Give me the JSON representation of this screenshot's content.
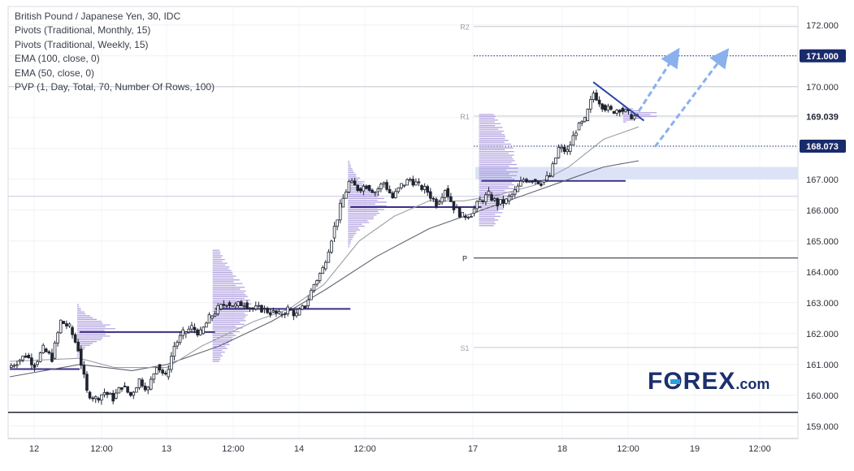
{
  "legend": [
    "British Pound / Japanese Yen, 30, IDC",
    "Pivots (Traditional, Monthly, 15)",
    "Pivots (Traditional, Weekly, 15)",
    "EMA (100, close, 0)",
    "EMA (50, close, 0)",
    "PVP (1, Day, Total, 70, Number Of Rows, 100)"
  ],
  "logo": {
    "prefix": "F",
    "o": "O",
    "suffix": "REX",
    "tld": ".com"
  },
  "colors": {
    "candle": "#1f2430",
    "ema50": "#9a9ea6",
    "ema100": "#5f6470",
    "volume_profile": "#9b86d6",
    "poc": "#3b2f86",
    "trendline": "#2a46a6",
    "arrow": "#8ab0ee",
    "level_label_bg": "#1a2b6b",
    "zone": "#dde3f7"
  },
  "chart_data": {
    "type": "candlestick",
    "ylim": [
      158.6,
      172.6
    ],
    "y_ticks": [
      "172.000",
      "171.000",
      "170.000",
      "169.000",
      "168.000",
      "167.000",
      "166.000",
      "165.000",
      "164.000",
      "163.000",
      "162.000",
      "161.000",
      "160.000",
      "159.000"
    ],
    "x_ticks": [
      "12",
      "12:00",
      "13",
      "12:00",
      "14",
      "12:00",
      "17",
      "18",
      "12:00",
      "19",
      "12:00"
    ],
    "grid": true,
    "pivot_labels": [
      "R2",
      "R1",
      "P",
      "S1"
    ],
    "pivots": {
      "R2": 171.95,
      "R1": 169.05,
      "P": 164.45,
      "S1": 161.55
    },
    "horizontal_levels": [
      {
        "label": "171.000",
        "value": 171.0,
        "style": "dotted",
        "tagged": true
      },
      {
        "label": "168.073",
        "value": 168.073,
        "style": "dotted",
        "tagged": true
      },
      {
        "value": 170.0,
        "style": "solid"
      },
      {
        "value": 159.45,
        "style": "solid-dark"
      }
    ],
    "last_price": "169.039",
    "last_price_value": 169.039,
    "price_path": [
      [
        0,
        160.9
      ],
      [
        1,
        161.1
      ],
      [
        2,
        161.3
      ],
      [
        3,
        161.0
      ],
      [
        4,
        161.5
      ],
      [
        5,
        161.2
      ],
      [
        6,
        162.4
      ],
      [
        7,
        162.2
      ],
      [
        8,
        161.5
      ],
      [
        9,
        160.1
      ],
      [
        10,
        159.9
      ],
      [
        11,
        160.1
      ],
      [
        12,
        159.9
      ],
      [
        13,
        160.3
      ],
      [
        14,
        160.0
      ],
      [
        15,
        160.5
      ],
      [
        16,
        160.2
      ],
      [
        17,
        161.0
      ],
      [
        18,
        160.6
      ],
      [
        19,
        161.6
      ],
      [
        20,
        162.0
      ],
      [
        21,
        162.2
      ],
      [
        22,
        162.0
      ],
      [
        23,
        162.5
      ],
      [
        24,
        162.8
      ],
      [
        25,
        163.0
      ],
      [
        26,
        162.9
      ],
      [
        27,
        163.0
      ],
      [
        28,
        162.8
      ],
      [
        29,
        162.8
      ],
      [
        30,
        162.7
      ],
      [
        31,
        162.6
      ],
      [
        32,
        162.8
      ],
      [
        33,
        162.6
      ],
      [
        34,
        162.9
      ],
      [
        35,
        163.6
      ],
      [
        36,
        164.1
      ],
      [
        37,
        165.1
      ],
      [
        38,
        166.1
      ],
      [
        39,
        166.9
      ],
      [
        40,
        166.7
      ],
      [
        41,
        166.8
      ],
      [
        42,
        166.6
      ],
      [
        43,
        166.9
      ],
      [
        44,
        166.4
      ],
      [
        45,
        166.8
      ],
      [
        46,
        167.0
      ],
      [
        47,
        166.8
      ],
      [
        48,
        166.6
      ],
      [
        49,
        166.2
      ],
      [
        50,
        166.7
      ],
      [
        51,
        166.1
      ],
      [
        52,
        165.8
      ],
      [
        53,
        165.9
      ],
      [
        54,
        166.3
      ],
      [
        55,
        166.5
      ],
      [
        56,
        166.2
      ],
      [
        57,
        166.3
      ],
      [
        58,
        166.6
      ],
      [
        59,
        167.0
      ],
      [
        60,
        167.0
      ],
      [
        61,
        166.9
      ],
      [
        62,
        167.1
      ],
      [
        63,
        168.0
      ],
      [
        64,
        167.9
      ],
      [
        65,
        168.6
      ],
      [
        66,
        168.9
      ],
      [
        67,
        169.8
      ],
      [
        68,
        169.4
      ],
      [
        69,
        169.2
      ],
      [
        70,
        169.3
      ],
      [
        71,
        169.1
      ],
      [
        72,
        169.0
      ]
    ],
    "ema50": [
      [
        0,
        161.1
      ],
      [
        8,
        161.2
      ],
      [
        12,
        160.9
      ],
      [
        18,
        160.9
      ],
      [
        22,
        161.6
      ],
      [
        28,
        162.4
      ],
      [
        32,
        162.8
      ],
      [
        36,
        163.6
      ],
      [
        40,
        165.0
      ],
      [
        44,
        165.8
      ],
      [
        48,
        166.3
      ],
      [
        52,
        166.3
      ],
      [
        56,
        166.5
      ],
      [
        60,
        166.8
      ],
      [
        64,
        167.4
      ],
      [
        68,
        168.3
      ],
      [
        72,
        168.7
      ]
    ],
    "ema100": [
      [
        0,
        160.6
      ],
      [
        8,
        161.0
      ],
      [
        14,
        160.8
      ],
      [
        18,
        161.0
      ],
      [
        24,
        161.6
      ],
      [
        30,
        162.4
      ],
      [
        36,
        163.4
      ],
      [
        42,
        164.5
      ],
      [
        48,
        165.4
      ],
      [
        52,
        165.8
      ],
      [
        56,
        166.2
      ],
      [
        60,
        166.6
      ],
      [
        64,
        167.0
      ],
      [
        68,
        167.4
      ],
      [
        72,
        167.6
      ]
    ],
    "volume_profiles": [
      {
        "x": 8,
        "center": 162.1,
        "spread": 0.6
      },
      {
        "x": 23.5,
        "center": 162.9,
        "spread": 1.8
      },
      {
        "x": 39,
        "center": 166.2,
        "spread": 1.0
      },
      {
        "x": 54,
        "center": 167.3,
        "spread": 2.5
      },
      {
        "x": 70.5,
        "center": 169.1,
        "spread": 0.2
      }
    ],
    "poc_lines": [
      {
        "value": 160.85,
        "x0": 0,
        "x1": 8
      },
      {
        "value": 162.05,
        "x0": 8,
        "x1": 23.5
      },
      {
        "value": 162.8,
        "x0": 23.5,
        "x1": 39
      },
      {
        "value": 166.1,
        "x0": 39,
        "x1": 54
      },
      {
        "value": 166.95,
        "x0": 54,
        "x1": 70.5
      }
    ],
    "resistance_zone": [
      167.0,
      167.4
    ],
    "trendline": [
      [
        66.8,
        170.15
      ],
      [
        72.6,
        168.9
      ]
    ]
  }
}
